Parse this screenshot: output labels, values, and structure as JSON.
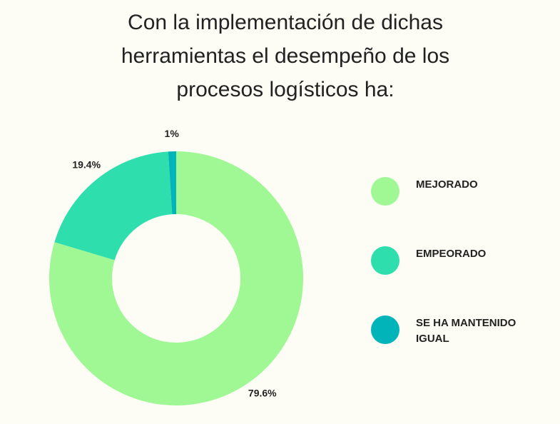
{
  "chart_data": {
    "type": "donut",
    "title": "Con la implementación de dichas herramientas el desempeño de los procesos logísticos ha:",
    "categories": [
      "MEJORADO",
      "EMPEORADO",
      "SE HA MANTENIDO IGUAL"
    ],
    "values": [
      79.6,
      19.4,
      1
    ],
    "value_labels": [
      "79.6%",
      "19.4%",
      "1%"
    ],
    "colors": [
      "#9ff894",
      "#2edfad",
      "#00b4b9"
    ],
    "legend": "right"
  }
}
